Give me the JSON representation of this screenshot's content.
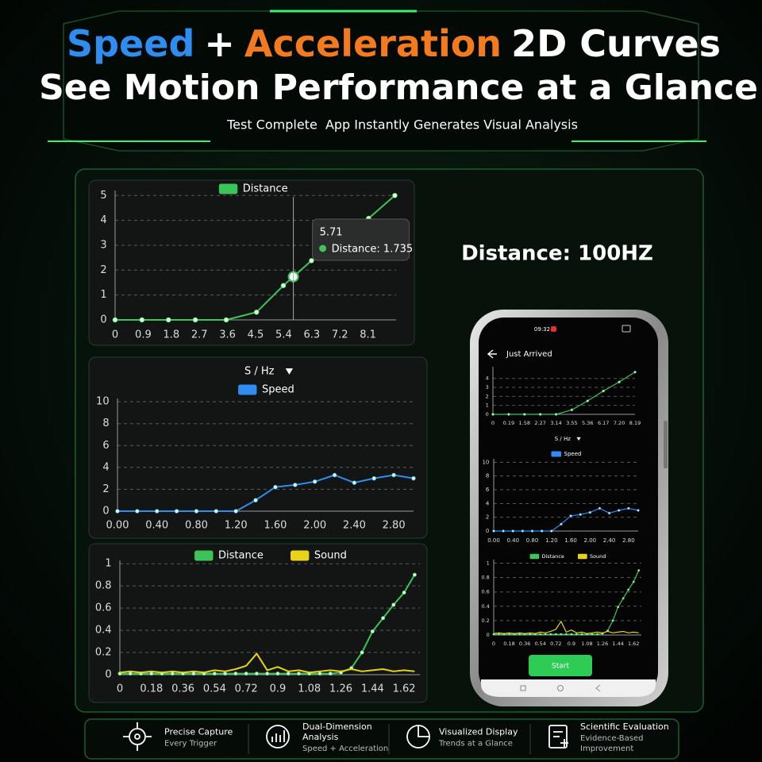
{
  "header": {
    "title_parts": [
      "Speed",
      "+",
      "Acceleration",
      "2D Curves"
    ],
    "title_line2": "See Motion Performance at a Glance",
    "subtitle": "Test Complete  App Instantly Generates Visual Analysis"
  },
  "side_label": "Distance: 100HZ",
  "phone": {
    "time": "09:32",
    "title": "Just Arrived",
    "button": "Start"
  },
  "features": [
    {
      "title_lines": [
        "Precise Capture"
      ],
      "subtitle_lines": [
        "Every Trigger"
      ]
    },
    {
      "title_lines": [
        "Dual-Dimension",
        "Analysis"
      ],
      "subtitle_lines": [
        "Speed + Acceleration"
      ]
    },
    {
      "title_lines": [
        "Visualized Display"
      ],
      "subtitle_lines": [
        "Trends at a Glance"
      ]
    },
    {
      "title_lines": [
        "Scientific Evaluation"
      ],
      "subtitle_lines": [
        "Evidence-Based",
        "Improvement"
      ]
    }
  ],
  "chart_data": [
    {
      "type": "line",
      "x": [
        0,
        0.86,
        1.71,
        2.57,
        3.56,
        4.53,
        5.39,
        5.71,
        6.29,
        8.12,
        8.96
      ],
      "series": [
        {
          "name": "Distance",
          "color": "#3cc45a",
          "markers": true,
          "values": [
            0,
            0,
            0,
            0,
            0,
            0.31,
            1.38,
            1.735,
            2.38,
            4.08,
            5
          ]
        }
      ],
      "xlim": [
        0,
        9
      ],
      "xticks": [
        0,
        0.9,
        1.8,
        2.7,
        3.6,
        4.5,
        5.4,
        6.3,
        7.2,
        8.1
      ],
      "ylim": [
        0,
        5.2
      ],
      "yticks": [
        0,
        1,
        2,
        3,
        4,
        5
      ],
      "grid": true,
      "tooltip": {
        "x": 5.71,
        "text": "Distance: 1.735"
      }
    },
    {
      "type": "line",
      "dropdown": "S / Hz",
      "x": [
        0,
        0.2,
        0.4,
        0.6,
        0.8,
        1.0,
        1.2,
        1.4,
        1.6,
        1.8,
        2.0,
        2.2,
        2.4,
        2.6,
        2.8,
        3.0
      ],
      "series": [
        {
          "name": "Speed",
          "color": "#2f8cf0",
          "markers": true,
          "values": [
            0,
            0,
            0,
            0,
            0,
            0,
            0,
            1.0,
            2.2,
            2.4,
            2.7,
            3.3,
            2.6,
            3.0,
            3.3,
            3.0
          ]
        }
      ],
      "xlim": [
        0,
        3
      ],
      "xticks": [
        {
          "value": 0,
          "label": "0.00"
        },
        {
          "value": 0.4,
          "label": "0.40"
        },
        {
          "value": 0.8,
          "label": "0.80"
        },
        {
          "value": 1.2,
          "label": "1.20"
        },
        {
          "value": 1.6,
          "label": "1.60"
        },
        {
          "value": 2,
          "label": "2.00"
        },
        {
          "value": 2.4,
          "label": "2.40"
        },
        {
          "value": 2.8,
          "label": "2.80"
        }
      ],
      "ylim": [
        0,
        10.3
      ],
      "yticks": [
        0,
        2,
        4,
        6,
        8,
        10
      ],
      "grid": true
    },
    {
      "type": "line",
      "x": [
        0,
        0.06,
        0.12,
        0.18,
        0.24,
        0.3,
        0.36,
        0.42,
        0.48,
        0.54,
        0.6,
        0.66,
        0.72,
        0.78,
        0.84,
        0.9,
        0.96,
        1.02,
        1.08,
        1.14,
        1.2,
        1.26,
        1.32,
        1.38,
        1.44,
        1.5,
        1.56,
        1.62,
        1.68
      ],
      "series": [
        {
          "name": "Distance",
          "color": "#3cc45a",
          "markers": true,
          "values": [
            0.01,
            0.01,
            0.01,
            0.01,
            0.01,
            0.01,
            0.01,
            0.01,
            0.01,
            0.01,
            0.01,
            0.01,
            0.01,
            0.01,
            0.01,
            0.01,
            0.01,
            0.01,
            0.01,
            0.01,
            0.01,
            0.02,
            0.06,
            0.2,
            0.39,
            0.51,
            0.63,
            0.74,
            0.9
          ]
        },
        {
          "name": "Sound",
          "color": "#e8d21a",
          "markers": false,
          "values": [
            0.02,
            0.03,
            0.02,
            0.03,
            0.02,
            0.03,
            0.02,
            0.03,
            0.02,
            0.04,
            0.03,
            0.05,
            0.08,
            0.19,
            0.04,
            0.07,
            0.03,
            0.04,
            0.02,
            0.03,
            0.04,
            0.03,
            0.05,
            0.03,
            0.04,
            0.05,
            0.03,
            0.04,
            0.03
          ]
        }
      ],
      "xlim": [
        0,
        1.71
      ],
      "xticks": [
        0,
        0.18,
        0.36,
        0.54,
        0.72,
        0.9,
        1.08,
        1.26,
        1.44,
        1.62
      ],
      "ylim": [
        0,
        1.03
      ],
      "yticks": [
        0,
        0.2,
        0.4,
        0.6,
        0.8,
        1
      ],
      "grid": true
    },
    {
      "type": "line",
      "categories": [
        "0",
        "0.19",
        "1.58",
        "2.27",
        "3.14",
        "3.55",
        "5.36",
        "6.17",
        "7.20",
        "8.19"
      ],
      "series": [
        {
          "color": "#3cc45a",
          "markers": true,
          "values": [
            0,
            0,
            0,
            0,
            0,
            0.5,
            1.5,
            2.6,
            3.6,
            4.7
          ]
        }
      ],
      "ylim": [
        0,
        5.3
      ],
      "yticks": [
        0,
        1,
        2,
        3,
        4
      ],
      "grid": true
    },
    {
      "type": "line",
      "dropdown": "S / Hz",
      "x": [
        0,
        0.2,
        0.4,
        0.6,
        0.8,
        1.0,
        1.2,
        1.4,
        1.6,
        1.8,
        2.0,
        2.2,
        2.4,
        2.6,
        2.8,
        3.0
      ],
      "series": [
        {
          "name": "Speed",
          "color": "#2f8cf0",
          "markers": true,
          "values": [
            0,
            0,
            0,
            0,
            0,
            0,
            0,
            1.0,
            2.2,
            2.4,
            2.7,
            3.3,
            2.6,
            3.0,
            3.3,
            3.0
          ]
        }
      ],
      "xlim": [
        0,
        3
      ],
      "xticks": [
        {
          "value": 0,
          "label": "0.00"
        },
        {
          "value": 0.4,
          "label": "0.40"
        },
        {
          "value": 0.8,
          "label": "0.80"
        },
        {
          "value": 1.2,
          "label": "1.20"
        },
        {
          "value": 1.6,
          "label": "1.60"
        },
        {
          "value": 2,
          "label": "2.00"
        },
        {
          "value": 2.4,
          "label": "2.40"
        },
        {
          "value": 2.8,
          "label": "2.80"
        }
      ],
      "ylim": [
        0,
        10.5
      ],
      "yticks": [
        0,
        2,
        4,
        6,
        8,
        10
      ],
      "grid": true
    },
    {
      "type": "line",
      "x": [
        0,
        0.06,
        0.12,
        0.18,
        0.24,
        0.3,
        0.36,
        0.42,
        0.48,
        0.54,
        0.6,
        0.66,
        0.72,
        0.78,
        0.84,
        0.9,
        0.96,
        1.02,
        1.08,
        1.14,
        1.2,
        1.26,
        1.32,
        1.38,
        1.44,
        1.5,
        1.56,
        1.62,
        1.68
      ],
      "series": [
        {
          "name": "Distance",
          "color": "#3cc45a",
          "markers": true,
          "values": [
            0.01,
            0.01,
            0.01,
            0.01,
            0.01,
            0.01,
            0.01,
            0.01,
            0.01,
            0.01,
            0.01,
            0.01,
            0.01,
            0.01,
            0.01,
            0.01,
            0.01,
            0.01,
            0.01,
            0.01,
            0.01,
            0.02,
            0.06,
            0.2,
            0.39,
            0.51,
            0.63,
            0.74,
            0.9
          ]
        },
        {
          "name": "Sound",
          "color": "#e8d21a",
          "markers": false,
          "values": [
            0.02,
            0.03,
            0.02,
            0.03,
            0.02,
            0.03,
            0.02,
            0.03,
            0.02,
            0.04,
            0.03,
            0.05,
            0.08,
            0.19,
            0.04,
            0.07,
            0.03,
            0.04,
            0.02,
            0.03,
            0.04,
            0.03,
            0.05,
            0.03,
            0.04,
            0.05,
            0.03,
            0.04,
            0.03
          ]
        }
      ],
      "xlim": [
        0,
        1.71
      ],
      "xticks": [
        0,
        0.18,
        0.36,
        0.54,
        0.72,
        0.9,
        1.08,
        1.26,
        1.44,
        1.62
      ],
      "ylim": [
        0,
        1.05
      ],
      "yticks": [
        0,
        0.2,
        0.4,
        0.6,
        0.8,
        1
      ],
      "grid": true
    }
  ]
}
